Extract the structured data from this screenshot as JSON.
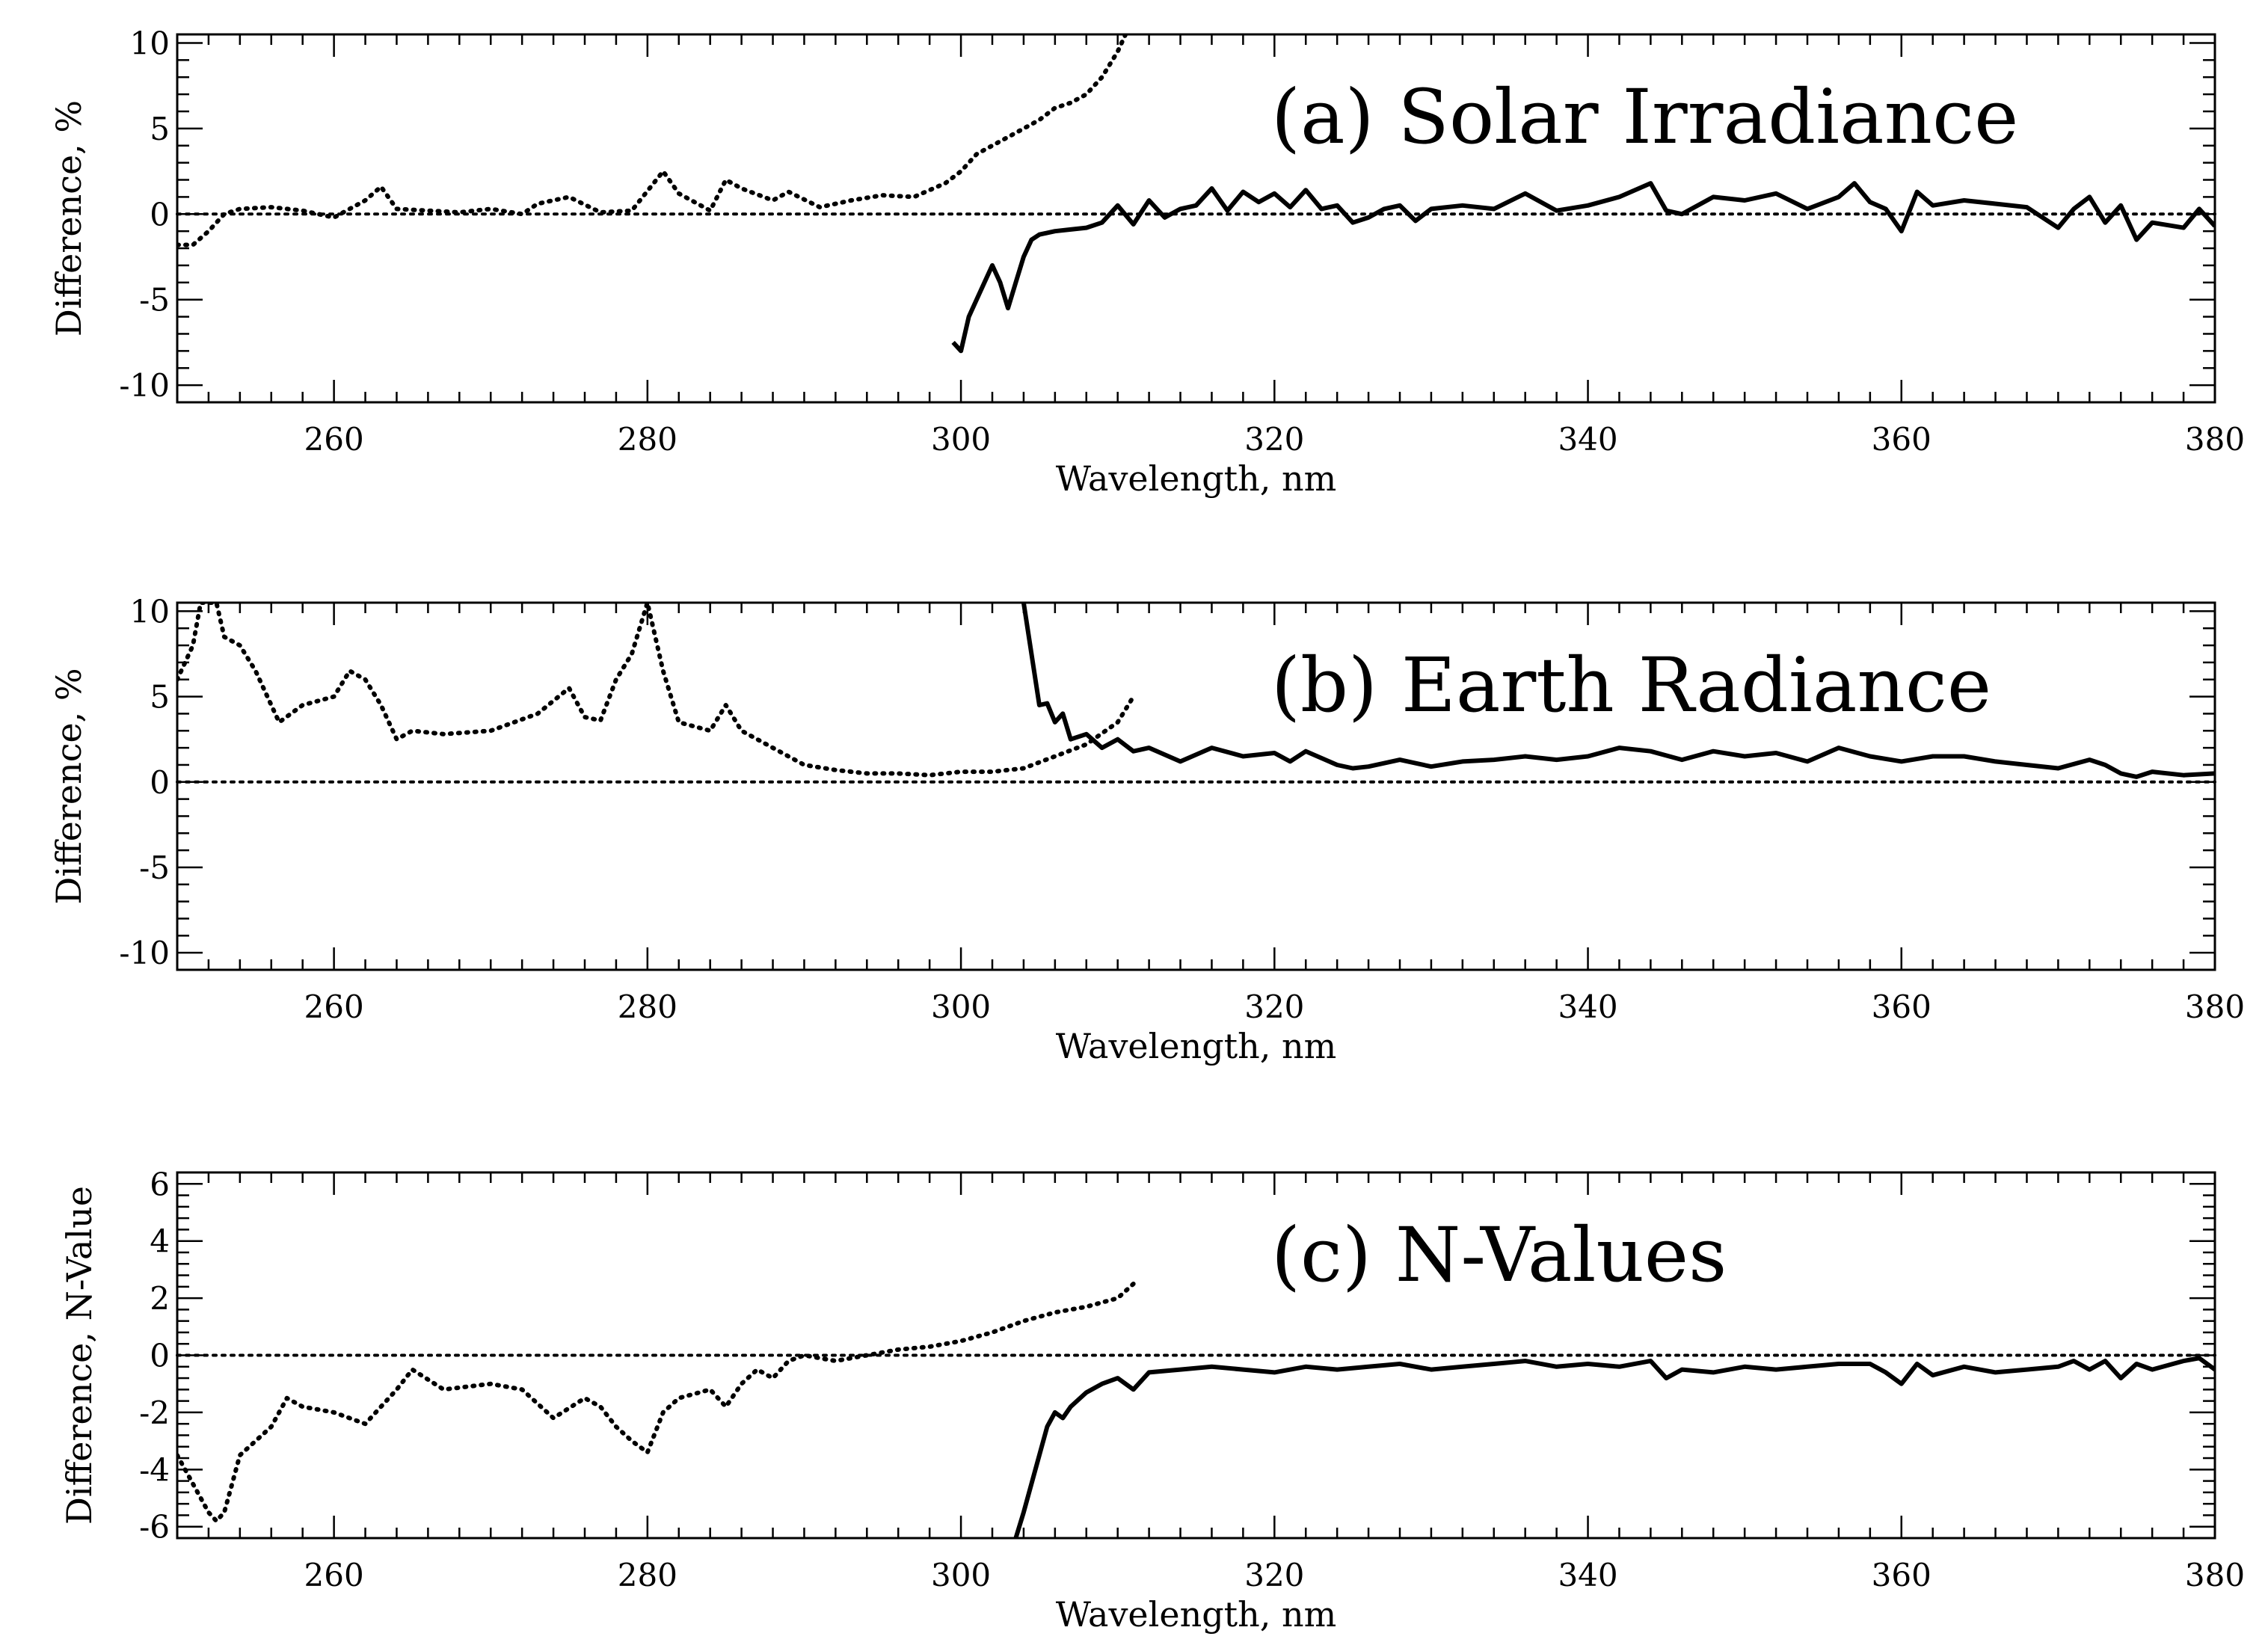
{
  "chart_data": [
    {
      "type": "line",
      "title": "(a) Solar Irradiance",
      "xlabel": "Wavelength, nm",
      "ylabel": "Difference, %",
      "xlim": [
        250,
        380
      ],
      "ylim": [
        -11,
        10.5
      ],
      "xticks": [
        260,
        280,
        300,
        320,
        340,
        360,
        380
      ],
      "yticks": [
        10,
        5,
        0,
        -5,
        -10
      ],
      "ytick_labels": [
        "10",
        "5",
        "0",
        "-5",
        "-10"
      ],
      "reference_line": 0,
      "series": [
        {
          "name": "dotted",
          "style": "dotted",
          "x": [
            250,
            251,
            252,
            253,
            254,
            256,
            258,
            260,
            262,
            263,
            264,
            266,
            268,
            270,
            272,
            273,
            275,
            277,
            279,
            281,
            282,
            284,
            285,
            286,
            288,
            289,
            291,
            293,
            295,
            297,
            298,
            299,
            300,
            301,
            302,
            303,
            304,
            305,
            306,
            307,
            308,
            309,
            310,
            310.5
          ],
          "y": [
            -1.8,
            -1.8,
            -1,
            0,
            0.3,
            0.4,
            0.2,
            -0.2,
            0.8,
            1.6,
            0.3,
            0.2,
            0.1,
            0.3,
            0,
            0.6,
            1.0,
            0.1,
            0.2,
            2.5,
            1.2,
            0.2,
            2.0,
            1.5,
            0.8,
            1.3,
            0.4,
            0.8,
            1.1,
            1.0,
            1.4,
            1.8,
            2.5,
            3.5,
            4.0,
            4.5,
            5.0,
            5.5,
            6.2,
            6.5,
            7.0,
            8.0,
            9.5,
            10.5
          ]
        },
        {
          "name": "solid",
          "style": "solid",
          "x": [
            299.5,
            300,
            300.5,
            301,
            301.5,
            302,
            302.5,
            303,
            303.5,
            304,
            304.5,
            305,
            306,
            307,
            308,
            309,
            310,
            311,
            312,
            313,
            314,
            315,
            316,
            317,
            318,
            319,
            320,
            321,
            322,
            323,
            324,
            325,
            326,
            327,
            328,
            329,
            330,
            332,
            334,
            336,
            338,
            340,
            342,
            344,
            345,
            346,
            348,
            350,
            352,
            354,
            356,
            357,
            358,
            359,
            360,
            361,
            362,
            364,
            366,
            368,
            370,
            371,
            372,
            373,
            374,
            375,
            376,
            378,
            379,
            380
          ],
          "y": [
            -7.5,
            -8,
            -6,
            -5,
            -4,
            -3,
            -4,
            -5.5,
            -4,
            -2.5,
            -1.5,
            -1.2,
            -1,
            -0.9,
            -0.8,
            -0.5,
            0.5,
            -0.6,
            0.8,
            -0.2,
            0.3,
            0.5,
            1.5,
            0.2,
            1.3,
            0.7,
            1.2,
            0.4,
            1.4,
            0.3,
            0.5,
            -0.5,
            -0.2,
            0.3,
            0.5,
            -0.4,
            0.3,
            0.5,
            0.3,
            1.2,
            0.2,
            0.5,
            1.0,
            1.8,
            0.2,
            0.0,
            1.0,
            0.8,
            1.2,
            0.3,
            1.0,
            1.8,
            0.7,
            0.3,
            -1.0,
            1.3,
            0.5,
            0.8,
            0.6,
            0.4,
            -0.8,
            0.3,
            1.0,
            -0.5,
            0.5,
            -1.5,
            -0.5,
            -0.8,
            0.3,
            -0.7
          ]
        }
      ]
    },
    {
      "type": "line",
      "title": "(b) Earth Radiance",
      "xlabel": "Wavelength, nm",
      "ylabel": "Difference, %",
      "xlim": [
        250,
        380
      ],
      "ylim": [
        -11,
        10.5
      ],
      "xticks": [
        260,
        280,
        300,
        320,
        340,
        360,
        380
      ],
      "yticks": [
        10,
        5,
        0,
        -5,
        -10
      ],
      "ytick_labels": [
        "10",
        "5",
        "0",
        "-5",
        "-10"
      ],
      "reference_line": 0,
      "series": [
        {
          "name": "dotted",
          "style": "dotted",
          "x": [
            250,
            251,
            251.5,
            252.5,
            253,
            254,
            255,
            256,
            256.5,
            258,
            260,
            261,
            262,
            263,
            264,
            265,
            267,
            270,
            273,
            275,
            276,
            277,
            278,
            279,
            280,
            281,
            282,
            284,
            285,
            286,
            287,
            288,
            290,
            292,
            294,
            296,
            298,
            300,
            302,
            304,
            306,
            308,
            310,
            311
          ],
          "y": [
            6,
            8,
            10.5,
            10.5,
            8.5,
            8,
            6.5,
            4.5,
            3.5,
            4.5,
            5,
            6.5,
            6,
            4.5,
            2.5,
            3,
            2.8,
            3,
            4,
            5.5,
            3.8,
            3.6,
            6,
            7.5,
            10.5,
            6.5,
            3.5,
            3.0,
            4.5,
            3.0,
            2.5,
            2.0,
            1.0,
            0.7,
            0.5,
            0.5,
            0.4,
            0.6,
            0.6,
            0.8,
            1.5,
            2.2,
            3.5,
            5
          ]
        },
        {
          "name": "solid",
          "style": "solid",
          "x": [
            304,
            305,
            305.5,
            306,
            306.5,
            307,
            308,
            309,
            310,
            311,
            312,
            314,
            316,
            318,
            320,
            321,
            322,
            324,
            325,
            326,
            328,
            330,
            332,
            334,
            336,
            338,
            340,
            342,
            344,
            346,
            348,
            350,
            352,
            354,
            356,
            358,
            360,
            362,
            364,
            366,
            368,
            370,
            372,
            373,
            374,
            375,
            376,
            378,
            380
          ],
          "y": [
            10.5,
            4.5,
            4.6,
            3.5,
            4.0,
            2.5,
            2.8,
            2.0,
            2.5,
            1.8,
            2.0,
            1.2,
            2.0,
            1.5,
            1.7,
            1.2,
            1.8,
            1.0,
            0.8,
            0.9,
            1.3,
            0.9,
            1.2,
            1.3,
            1.5,
            1.3,
            1.5,
            2.0,
            1.8,
            1.3,
            1.8,
            1.5,
            1.7,
            1.2,
            2.0,
            1.5,
            1.2,
            1.5,
            1.5,
            1.2,
            1.0,
            0.8,
            1.3,
            1.0,
            0.5,
            0.3,
            0.6,
            0.4,
            0.5
          ]
        }
      ]
    },
    {
      "type": "line",
      "title": "(c) N-Values",
      "xlabel": "Wavelength, nm",
      "ylabel": "Difference, N-Value",
      "xlim": [
        250,
        380
      ],
      "ylim": [
        -6.4,
        6.4
      ],
      "xticks": [
        260,
        280,
        300,
        320,
        340,
        360,
        380
      ],
      "yticks": [
        6,
        4,
        2,
        0,
        -2,
        -4,
        -6
      ],
      "ytick_labels": [
        "6",
        "4",
        "2",
        "0",
        "-2",
        "-4",
        "-6"
      ],
      "reference_line": 0,
      "series": [
        {
          "name": "dotted",
          "style": "dotted",
          "x": [
            250,
            250.5,
            251,
            252,
            252.5,
            253,
            253.5,
            254,
            255,
            256,
            257,
            258,
            260,
            262,
            264,
            265,
            267,
            270,
            272,
            274,
            276,
            277,
            278,
            279,
            280,
            281,
            282,
            284,
            285,
            286,
            287,
            288,
            289,
            290,
            292,
            294,
            296,
            298,
            300,
            302,
            304,
            306,
            308,
            310,
            311
          ],
          "y": [
            -3.5,
            -4,
            -4.5,
            -5.5,
            -5.8,
            -5.5,
            -4.5,
            -3.5,
            -3.0,
            -2.5,
            -1.5,
            -1.8,
            -2.0,
            -2.4,
            -1.2,
            -0.5,
            -1.2,
            -1.0,
            -1.2,
            -2.2,
            -1.5,
            -1.8,
            -2.5,
            -3.0,
            -3.4,
            -2.0,
            -1.5,
            -1.2,
            -1.8,
            -1.0,
            -0.5,
            -0.8,
            -0.2,
            0,
            -0.2,
            0,
            0.2,
            0.3,
            0.5,
            0.8,
            1.2,
            1.5,
            1.7,
            2.0,
            2.5
          ]
        },
        {
          "name": "solid",
          "style": "solid",
          "x": [
            303.5,
            304,
            305,
            305.5,
            306,
            306.5,
            307,
            308,
            309,
            310,
            311,
            312,
            314,
            316,
            318,
            320,
            322,
            324,
            326,
            328,
            330,
            332,
            334,
            336,
            338,
            340,
            342,
            344,
            345,
            346,
            348,
            350,
            352,
            354,
            356,
            358,
            359,
            360,
            361,
            362,
            364,
            366,
            368,
            370,
            371,
            372,
            373,
            374,
            375,
            376,
            378,
            379,
            380
          ],
          "y": [
            -6.4,
            -5.5,
            -3.5,
            -2.5,
            -2.0,
            -2.2,
            -1.8,
            -1.3,
            -1.0,
            -0.8,
            -1.2,
            -0.6,
            -0.5,
            -0.4,
            -0.5,
            -0.6,
            -0.4,
            -0.5,
            -0.4,
            -0.3,
            -0.5,
            -0.4,
            -0.3,
            -0.2,
            -0.4,
            -0.3,
            -0.4,
            -0.2,
            -0.8,
            -0.5,
            -0.6,
            -0.4,
            -0.5,
            -0.4,
            -0.3,
            -0.3,
            -0.6,
            -1.0,
            -0.3,
            -0.7,
            -0.4,
            -0.6,
            -0.5,
            -0.4,
            -0.2,
            -0.5,
            -0.2,
            -0.8,
            -0.3,
            -0.5,
            -0.2,
            -0.1,
            -0.5
          ]
        }
      ]
    }
  ]
}
